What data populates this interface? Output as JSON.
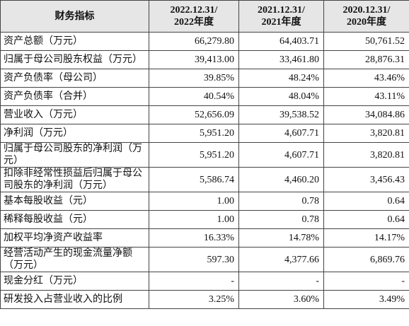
{
  "table": {
    "header": [
      "财务指标",
      [
        "2022.12.31/",
        "2022年度"
      ],
      [
        "2021.12.31/",
        "2021年度"
      ],
      [
        "2020.12.31/",
        "2020年度"
      ]
    ],
    "rows": [
      [
        "资产总额（万元）",
        "66,279.80",
        "64,403.71",
        "50,761.52"
      ],
      [
        "归属于母公司股东权益（万元）",
        "39,413.00",
        "33,461.80",
        "28,876.31"
      ],
      [
        "资产负债率（母公司）",
        "39.85%",
        "48.24%",
        "43.46%"
      ],
      [
        "资产负债率（合并）",
        "40.54%",
        "48.04%",
        "43.11%"
      ],
      [
        "营业收入（万元）",
        "52,656.09",
        "39,538.52",
        "34,084.86"
      ],
      [
        "净利润（万元）",
        "5,951.20",
        "4,607.71",
        "3,820.81"
      ],
      [
        "归属于母公司股东的净利润（万元）",
        "5,951.20",
        "4,607.71",
        "3,820.81"
      ],
      [
        "扣除非经常性损益后归属于母公司股东的净利润（万元）",
        "5,586.74",
        "4,460.20",
        "3,456.43"
      ],
      [
        "基本每股收益（元）",
        "1.00",
        "0.78",
        "0.64"
      ],
      [
        "稀释每股收益（元）",
        "1.00",
        "0.78",
        "0.64"
      ],
      [
        "加权平均净资产收益率",
        "16.33%",
        "14.78%",
        "14.17%"
      ],
      [
        "经营活动产生的现金流量净额（万元）",
        "597.30",
        "4,377.66",
        "6,869.76"
      ],
      [
        "现金分红（万元）",
        "-",
        "-",
        "-"
      ],
      [
        "研发投入占营业收入的比例",
        "3.25%",
        "3.60%",
        "3.49%"
      ]
    ]
  }
}
